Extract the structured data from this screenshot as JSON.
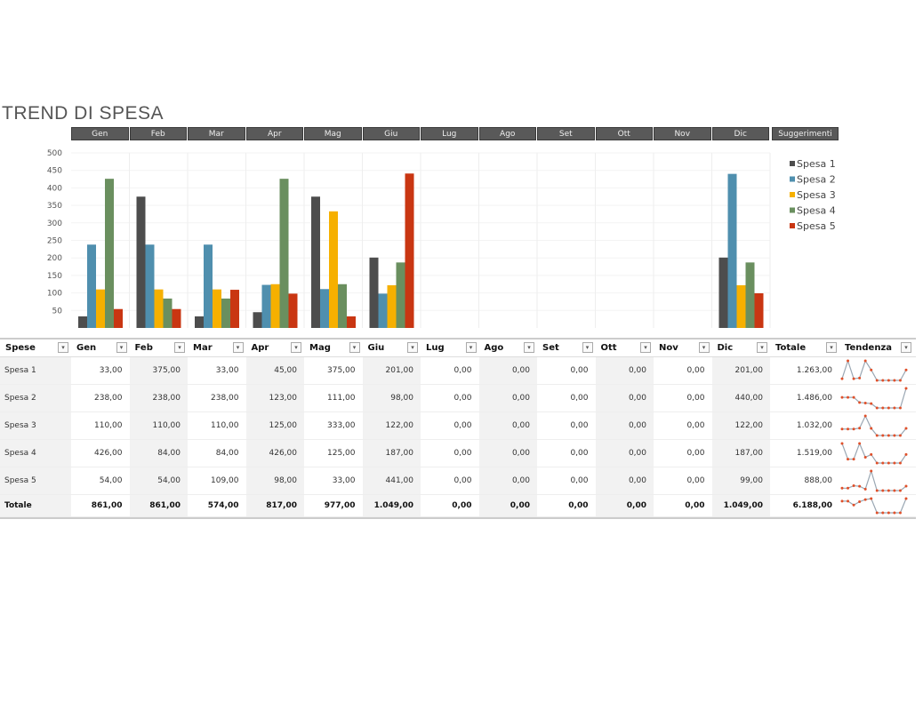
{
  "title": "TREND DI SPESA",
  "months": [
    "Gen",
    "Feb",
    "Mar",
    "Apr",
    "Mag",
    "Giu",
    "Lug",
    "Ago",
    "Set",
    "Ott",
    "Nov",
    "Dic"
  ],
  "suggestions_label": "Suggerimenti",
  "chart_data": {
    "type": "bar",
    "categories": [
      "Gen",
      "Feb",
      "Mar",
      "Apr",
      "Mag",
      "Giu",
      "Lug",
      "Ago",
      "Set",
      "Ott",
      "Nov",
      "Dic"
    ],
    "ylim": [
      0,
      500
    ],
    "yticks": [
      50,
      100,
      150,
      200,
      250,
      300,
      350,
      400,
      450,
      500
    ],
    "legend_position": "right",
    "grid": true,
    "series": [
      {
        "name": "Spesa 1",
        "color": "#4d4d4d",
        "values": [
          33,
          375,
          33,
          45,
          375,
          201,
          0,
          0,
          0,
          0,
          0,
          201
        ]
      },
      {
        "name": "Spesa 2",
        "color": "#4f8fae",
        "values": [
          238,
          238,
          238,
          123,
          111,
          98,
          0,
          0,
          0,
          0,
          0,
          440
        ]
      },
      {
        "name": "Spesa 3",
        "color": "#f6b000",
        "values": [
          110,
          110,
          110,
          125,
          333,
          122,
          0,
          0,
          0,
          0,
          0,
          122
        ]
      },
      {
        "name": "Spesa 4",
        "color": "#6a8f5f",
        "values": [
          426,
          84,
          84,
          426,
          125,
          187,
          0,
          0,
          0,
          0,
          0,
          187
        ]
      },
      {
        "name": "Spesa 5",
        "color": "#c93612",
        "values": [
          54,
          54,
          109,
          98,
          33,
          441,
          0,
          0,
          0,
          0,
          0,
          99
        ]
      }
    ]
  },
  "table": {
    "headers": [
      "Spese",
      "Gen",
      "Feb",
      "Mar",
      "Apr",
      "Mag",
      "Giu",
      "Lug",
      "Ago",
      "Set",
      "Ott",
      "Nov",
      "Dic",
      "Totale",
      "Tendenza"
    ],
    "rows": [
      {
        "name": "Spesa 1",
        "values": [
          "33,00",
          "375,00",
          "33,00",
          "45,00",
          "375,00",
          "201,00",
          "0,00",
          "0,00",
          "0,00",
          "0,00",
          "0,00",
          "201,00"
        ],
        "total": "1.263,00",
        "trend": [
          33,
          375,
          33,
          45,
          375,
          201,
          0,
          0,
          0,
          0,
          0,
          201
        ]
      },
      {
        "name": "Spesa 2",
        "values": [
          "238,00",
          "238,00",
          "238,00",
          "123,00",
          "111,00",
          "98,00",
          "0,00",
          "0,00",
          "0,00",
          "0,00",
          "0,00",
          "440,00"
        ],
        "total": "1.486,00",
        "trend": [
          238,
          238,
          238,
          123,
          111,
          98,
          0,
          0,
          0,
          0,
          0,
          440
        ]
      },
      {
        "name": "Spesa 3",
        "values": [
          "110,00",
          "110,00",
          "110,00",
          "125,00",
          "333,00",
          "122,00",
          "0,00",
          "0,00",
          "0,00",
          "0,00",
          "0,00",
          "122,00"
        ],
        "total": "1.032,00",
        "trend": [
          110,
          110,
          110,
          125,
          333,
          122,
          0,
          0,
          0,
          0,
          0,
          122
        ]
      },
      {
        "name": "Spesa 4",
        "values": [
          "426,00",
          "84,00",
          "84,00",
          "426,00",
          "125,00",
          "187,00",
          "0,00",
          "0,00",
          "0,00",
          "0,00",
          "0,00",
          "187,00"
        ],
        "total": "1.519,00",
        "trend": [
          426,
          84,
          84,
          426,
          125,
          187,
          0,
          0,
          0,
          0,
          0,
          187
        ]
      },
      {
        "name": "Spesa 5",
        "values": [
          "54,00",
          "54,00",
          "109,00",
          "98,00",
          "33,00",
          "441,00",
          "0,00",
          "0,00",
          "0,00",
          "0,00",
          "0,00",
          "99,00"
        ],
        "total": "888,00",
        "trend": [
          54,
          54,
          109,
          98,
          33,
          441,
          0,
          0,
          0,
          0,
          0,
          99
        ]
      }
    ],
    "totals": {
      "name": "Totale",
      "values": [
        "861,00",
        "861,00",
        "574,00",
        "817,00",
        "977,00",
        "1.049,00",
        "0,00",
        "0,00",
        "0,00",
        "0,00",
        "0,00",
        "1.049,00"
      ],
      "total": "6.188,00",
      "trend": [
        861,
        861,
        574,
        817,
        977,
        1049,
        0,
        0,
        0,
        0,
        0,
        1049
      ]
    },
    "sparkline_colors": {
      "line": "#9aa7b3",
      "marker": "#e0502a",
      "high": "#3b5fbf"
    }
  }
}
